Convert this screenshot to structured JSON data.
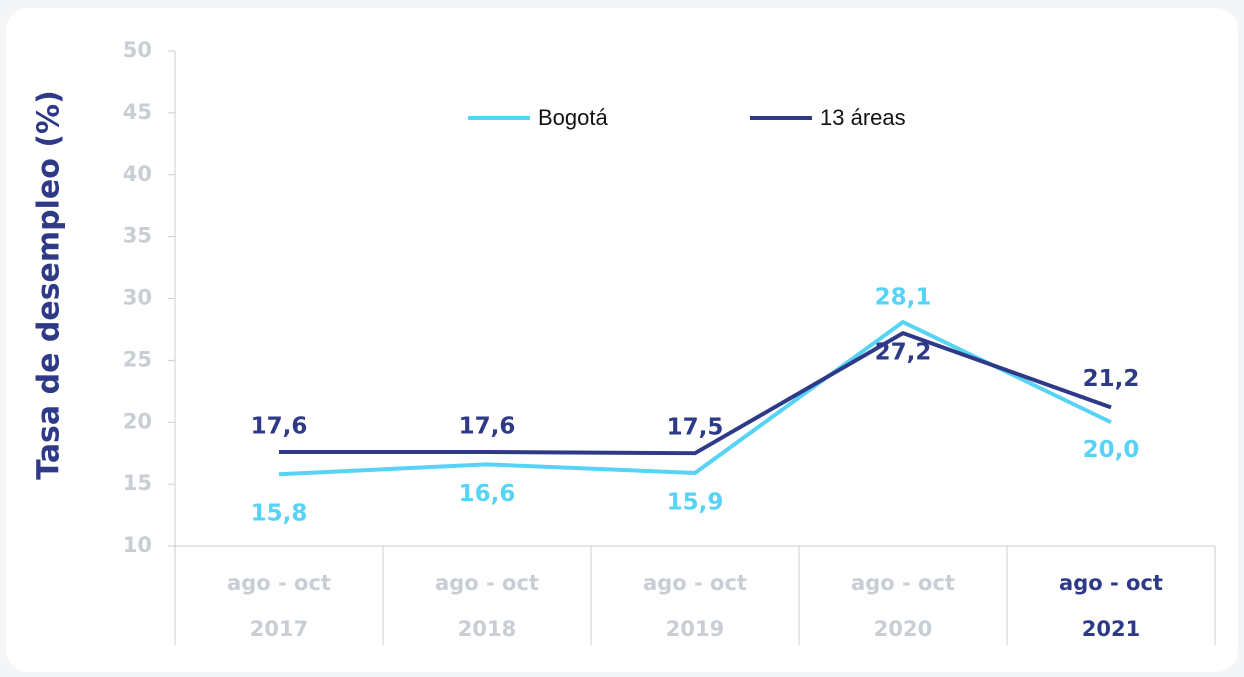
{
  "chart_data": {
    "type": "line",
    "y_label": "Tasa de desempleo (%)",
    "categories": [
      [
        "ago - oct",
        "2017"
      ],
      [
        "ago - oct",
        "2018"
      ],
      [
        "ago - oct",
        "2019"
      ],
      [
        "ago - oct",
        "2020"
      ],
      [
        "ago - oct",
        "2021"
      ]
    ],
    "series": [
      {
        "name": "Bogotá",
        "color": "#56d3f5",
        "values": [
          15.8,
          16.6,
          15.9,
          28.1,
          20.0
        ],
        "value_labels": [
          "15,8",
          "16,6",
          "15,9",
          "28,1",
          "20,0"
        ]
      },
      {
        "name": "13 áreas",
        "color": "#2e3a87",
        "values": [
          17.6,
          17.6,
          17.5,
          27.2,
          21.2
        ],
        "value_labels": [
          "17,6",
          "17,6",
          "17,5",
          "27,2",
          "21,2"
        ]
      }
    ],
    "ylim": [
      10,
      50
    ],
    "yticks": [
      10,
      15,
      20,
      25,
      30,
      35,
      40,
      45,
      50
    ],
    "legend": "top"
  }
}
